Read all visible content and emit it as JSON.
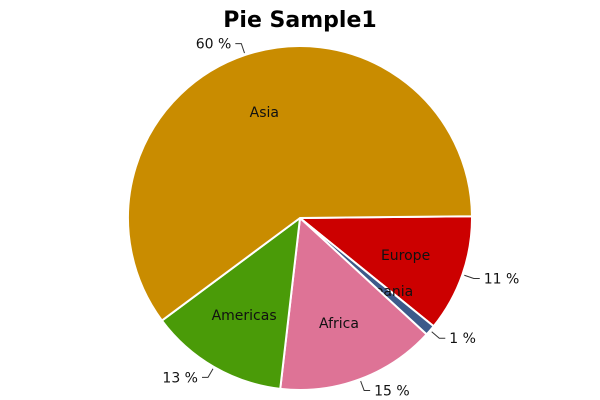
{
  "chart_data": {
    "type": "pie",
    "title": "Pie Sample1",
    "slices": [
      {
        "label": "Europe",
        "value": 11,
        "pct_text": "11 %",
        "color": "#cc0000"
      },
      {
        "label": "Oceania",
        "value": 1,
        "pct_text": "1 %",
        "color": "#3c5a8a"
      },
      {
        "label": "Africa",
        "value": 15,
        "pct_text": "15 %",
        "color": "#de7396"
      },
      {
        "label": "Americas",
        "value": 13,
        "pct_text": "13 %",
        "color": "#4a9b08"
      },
      {
        "label": "Asia",
        "value": 60,
        "pct_text": "60 %",
        "color": "#c98c00"
      }
    ]
  }
}
